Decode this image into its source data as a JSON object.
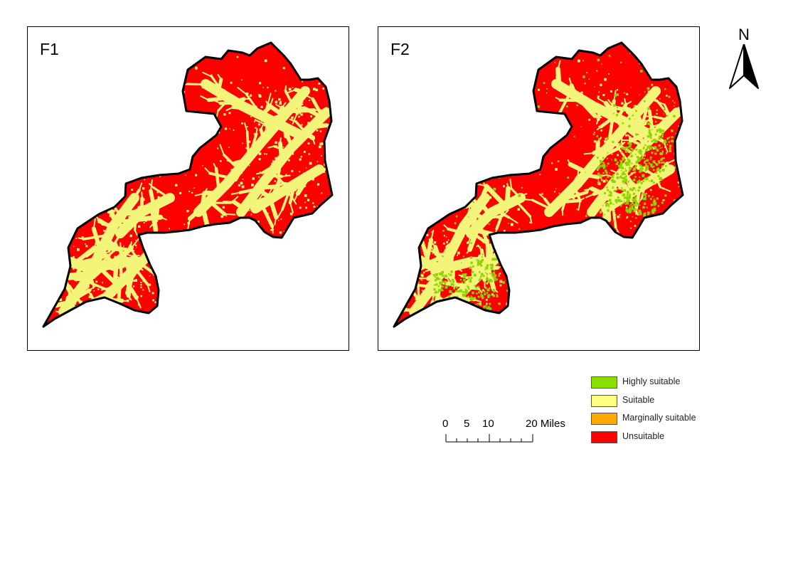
{
  "panels": [
    {
      "label": "F1"
    },
    {
      "label": "F2"
    }
  ],
  "north_arrow": {
    "letter": "N"
  },
  "scale_bar": {
    "ticks": [
      "0",
      "5",
      "10",
      "20 Miles"
    ]
  },
  "legend": {
    "items": [
      {
        "label": "Highly suitable",
        "color": "#8ce000"
      },
      {
        "label": "Suitable",
        "color": "#ffff80"
      },
      {
        "label": "Marginally suitable",
        "color": "#ffaa00"
      },
      {
        "label": "Unsuitable",
        "color": "#ff0000"
      }
    ]
  },
  "colors": {
    "unsuitable": "#ff0000",
    "suitable": "#f2f57a",
    "highly_suitable": "#8fd400",
    "outline": "#000000"
  }
}
